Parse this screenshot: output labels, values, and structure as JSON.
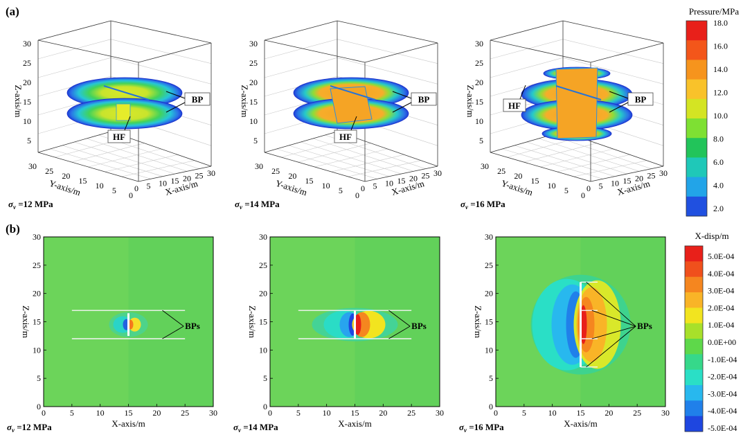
{
  "panel_labels": {
    "a": "(a)",
    "b": "(b)"
  },
  "top_row": {
    "axes": {
      "x_label": "X-axis/m",
      "y_label": "Y-axis/m",
      "z_label": "Z-axis/m"
    },
    "ticks": {
      "z": [
        "5",
        "10",
        "15",
        "20",
        "25",
        "30"
      ],
      "x": [
        "0",
        "5",
        "10",
        "15",
        "20",
        "25",
        "30"
      ],
      "y": [
        "30",
        "25",
        "20",
        "15",
        "10",
        "5",
        "0"
      ]
    },
    "annotations": {
      "hf": "HF",
      "bp": "BP"
    },
    "colorbar": {
      "title": "Pressure/MPa",
      "ticks": [
        "18.0",
        "16.0",
        "14.0",
        "12.0",
        "10.0",
        "8.0",
        "6.0",
        "4.0",
        "2.0"
      ],
      "colors": [
        "#e8201a",
        "#f3561a",
        "#f6941d",
        "#f9c22a",
        "#d4e423",
        "#7ee033",
        "#22c45a",
        "#1fc8b8",
        "#22a4e8",
        "#2050e0"
      ]
    },
    "captions": [
      {
        "sigma": "σ",
        "sub": "v",
        "value": " =12 MPa"
      },
      {
        "sigma": "σ",
        "sub": "v",
        "value": " =14 MPa"
      },
      {
        "sigma": "σ",
        "sub": "v",
        "value": " =16 MPa"
      }
    ]
  },
  "bottom_row": {
    "axes": {
      "x_label": "X-axis/m",
      "z_label": "Z-axis/m"
    },
    "ticks": {
      "x": [
        "0",
        "5",
        "10",
        "15",
        "20",
        "25",
        "30"
      ],
      "z": [
        "0",
        "5",
        "10",
        "15",
        "20",
        "25",
        "30"
      ]
    },
    "annotations": {
      "bps": "BPs"
    },
    "colorbar": {
      "title": "X-disp/m",
      "ticks": [
        "5.0E-04",
        "4.0E-04",
        "3.0E-04",
        "2.0E-04",
        "1.0E-04",
        "0.0E+00",
        "-1.0E-04",
        "-2.0E-04",
        "-3.0E-04",
        "-4.0E-04",
        "-5.0E-04"
      ],
      "colors": [
        "#e8201a",
        "#f0501c",
        "#f5861f",
        "#f9b427",
        "#f2e41f",
        "#a8e02a",
        "#5ed84a",
        "#36d88a",
        "#2adfc6",
        "#28b8ee",
        "#2080ea",
        "#1e46e0"
      ]
    },
    "captions": [
      {
        "sigma": "σ",
        "sub": "v",
        "value": " =12 MPa"
      },
      {
        "sigma": "σ",
        "sub": "v",
        "value": " =14 MPa"
      },
      {
        "sigma": "σ",
        "sub": "v",
        "value": " =16 MPa"
      }
    ]
  }
}
